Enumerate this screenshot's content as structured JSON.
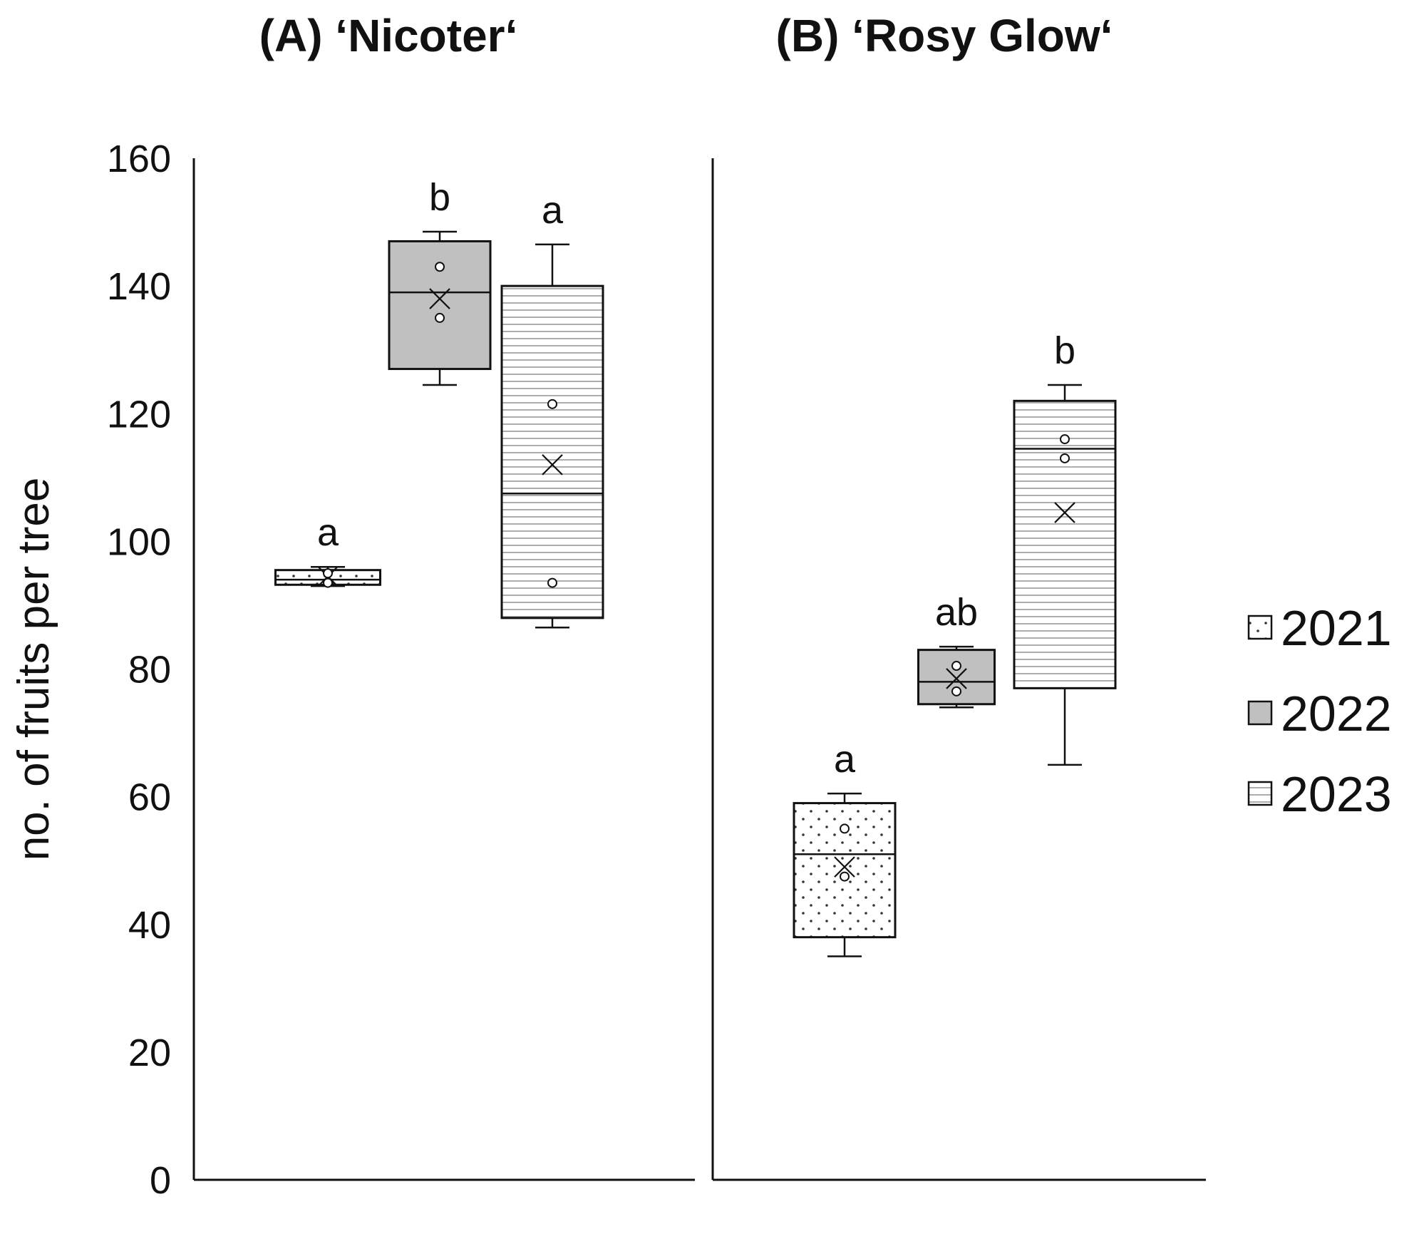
{
  "chart_data": {
    "type": "box",
    "ylabel": "no. of fruits per tree",
    "ylim": [
      0,
      160
    ],
    "yticks": [
      0,
      20,
      40,
      60,
      80,
      100,
      120,
      140,
      160
    ],
    "series_names": [
      "2021",
      "2022",
      "2023"
    ],
    "colors": {
      "2021": "#ffffff",
      "2022": "#c0c0c0",
      "2023": "#ffffff"
    },
    "patterns": {
      "2021": "dots",
      "2022": "solid-gray",
      "2023": "horizontal-lines"
    },
    "panels": [
      {
        "title": "(A) ‘Nicoter‘",
        "boxes": [
          {
            "year": "2021",
            "whisker_low": 93.0,
            "q1": 93.2,
            "median": 94.0,
            "q3": 95.5,
            "whisker_high": 96.0,
            "mean": 94.5,
            "points": [
              93.5,
              95.0
            ],
            "letter": "a"
          },
          {
            "year": "2022",
            "whisker_low": 124.5,
            "q1": 127.0,
            "median": 139.0,
            "q3": 147.0,
            "whisker_high": 148.5,
            "mean": 138.0,
            "points": [
              143.0,
              135.0
            ],
            "letter": "b"
          },
          {
            "year": "2023",
            "whisker_low": 86.5,
            "q1": 88.0,
            "median": 107.5,
            "q3": 140.0,
            "whisker_high": 146.5,
            "mean": 112.0,
            "points": [
              121.5,
              93.5
            ],
            "letter": "a"
          }
        ]
      },
      {
        "title": "(B) ‘Rosy Glow‘",
        "boxes": [
          {
            "year": "2021",
            "whisker_low": 35.0,
            "q1": 38.0,
            "median": 51.0,
            "q3": 59.0,
            "whisker_high": 60.5,
            "mean": 49.0,
            "points": [
              55.0,
              47.5
            ],
            "letter": "a"
          },
          {
            "year": "2022",
            "whisker_low": 74.0,
            "q1": 74.5,
            "median": 78.0,
            "q3": 83.0,
            "whisker_high": 83.5,
            "mean": 78.5,
            "points": [
              80.5,
              76.5
            ],
            "letter": "ab"
          },
          {
            "year": "2023",
            "whisker_low": 65.0,
            "q1": 77.0,
            "median": 114.5,
            "q3": 122.0,
            "whisker_high": 124.5,
            "mean": 104.5,
            "points": [
              116.0,
              113.0
            ],
            "letter": "b"
          }
        ]
      }
    ],
    "legend": {
      "position": "right",
      "entries": [
        "2021",
        "2022",
        "2023"
      ]
    },
    "grid": false
  }
}
